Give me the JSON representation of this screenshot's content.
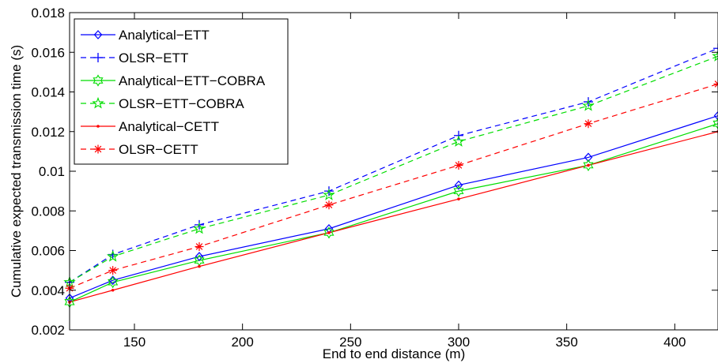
{
  "chart_data": {
    "type": "line",
    "title": "",
    "xlabel": "End to end distance (m)",
    "ylabel": "Cumulative expected transmission time (s)",
    "xlim": [
      120,
      420
    ],
    "ylim": [
      0.002,
      0.018
    ],
    "xticks": [
      150,
      200,
      250,
      300,
      350,
      400
    ],
    "yticks": [
      0.002,
      0.004,
      0.006,
      0.008,
      0.01,
      0.012,
      0.014,
      0.016,
      0.018
    ],
    "xtick_labels": [
      "150",
      "200",
      "250",
      "300",
      "350",
      "400"
    ],
    "ytick_labels": [
      "0.002",
      "0.004",
      "0.006",
      "0.008",
      "0.01",
      "0.012",
      "0.014",
      "0.016",
      "0.018"
    ],
    "grid": false,
    "legend_position": "top-left",
    "x": [
      120,
      140,
      180,
      240,
      300,
      360,
      420
    ],
    "series": [
      {
        "name": "Analytical−ETT",
        "values": [
          0.0036,
          0.0045,
          0.0057,
          0.0071,
          0.0093,
          0.0107,
          0.0128
        ],
        "color": "#0000ff",
        "dash": "solid",
        "marker": "diamond"
      },
      {
        "name": "OLSR−ETT",
        "values": [
          0.0044,
          0.0058,
          0.0073,
          0.009,
          0.0118,
          0.0135,
          0.0162
        ],
        "color": "#0000ff",
        "dash": "dashed",
        "marker": "plus"
      },
      {
        "name": "Analytical−ETT−COBRA",
        "values": [
          0.0034,
          0.0044,
          0.0055,
          0.0069,
          0.009,
          0.0103,
          0.0124
        ],
        "color": "#00dd00",
        "dash": "solid",
        "marker": "hexagram"
      },
      {
        "name": "OLSR−ETT−COBRA",
        "values": [
          0.0044,
          0.0057,
          0.0071,
          0.0088,
          0.0115,
          0.0133,
          0.0158
        ],
        "color": "#00dd00",
        "dash": "dashed",
        "marker": "pentagram"
      },
      {
        "name": "Analytical−CETT",
        "values": [
          0.0034,
          0.004,
          0.0052,
          0.0069,
          0.0086,
          0.0103,
          0.012
        ],
        "color": "#ff0000",
        "dash": "solid",
        "marker": "dot"
      },
      {
        "name": "OLSR−CETT",
        "values": [
          0.0041,
          0.005,
          0.0062,
          0.0083,
          0.0103,
          0.0124,
          0.0144
        ],
        "color": "#ff0000",
        "dash": "dashed",
        "marker": "asterisk"
      }
    ]
  }
}
